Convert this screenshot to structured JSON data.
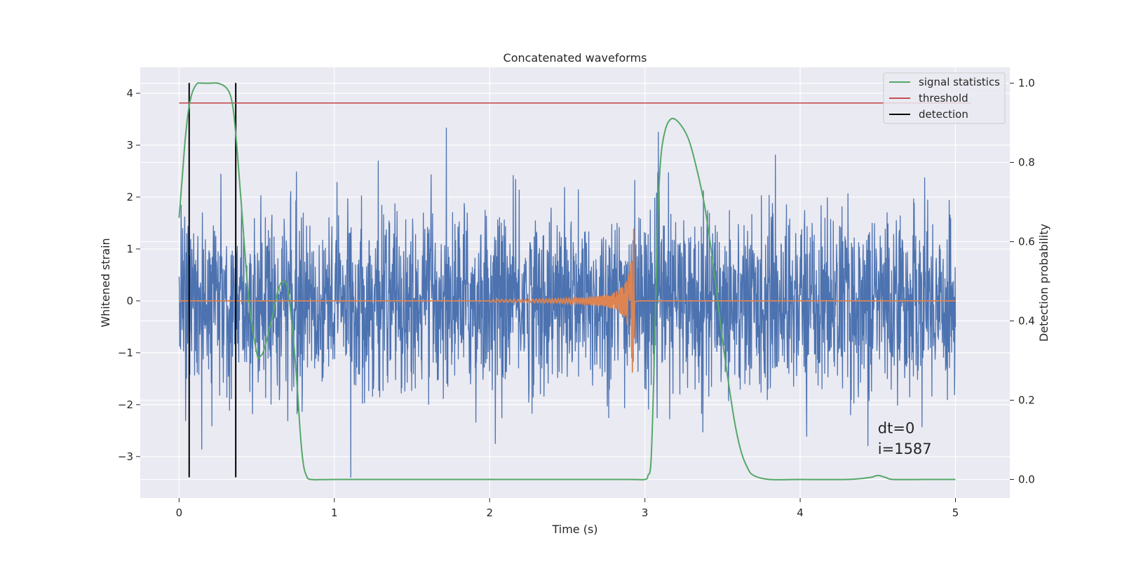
{
  "chart_data": {
    "type": "line",
    "title": "Concatenated waveforms",
    "xlabel": "Time (s)",
    "ylabel": "Whitened strain",
    "y2label": "Detection probability",
    "xlim": [
      -0.25,
      5.35
    ],
    "ylim": [
      -3.8,
      4.5
    ],
    "y2lim": [
      -0.047,
      1.04
    ],
    "xticks": [
      0,
      1,
      2,
      3,
      4,
      5
    ],
    "xtick_labels": [
      "0",
      "1",
      "2",
      "3",
      "4",
      "5"
    ],
    "yticks": [
      -3,
      -2,
      -1,
      0,
      1,
      2,
      3,
      4
    ],
    "ytick_labels": [
      "−3",
      "−2",
      "−1",
      "0",
      "1",
      "2",
      "3",
      "4"
    ],
    "y2ticks": [
      0,
      0.2,
      0.4,
      0.6,
      0.8,
      1.0
    ],
    "y2tick_labels": [
      "0.0",
      "0.2",
      "0.4",
      "0.6",
      "0.8",
      "1.0"
    ],
    "grid": true,
    "legend_position": "top-right",
    "noise": {
      "axis": "left",
      "color": "#4c72b0",
      "x_range": [
        0,
        5
      ],
      "y_range": [
        -3.4,
        4.2
      ]
    },
    "series": [
      {
        "name": "signal statistics",
        "axis": "right",
        "color": "#55a868",
        "x": [
          0,
          0.02,
          0.04,
          0.06,
          0.08,
          0.1,
          0.12,
          0.15,
          0.2,
          0.25,
          0.3,
          0.33,
          0.35,
          0.37,
          0.4,
          0.45,
          0.5,
          0.52,
          0.55,
          0.6,
          0.64,
          0.67,
          0.7,
          0.73,
          0.76,
          0.78,
          0.8,
          0.82,
          0.85,
          1.0,
          1.5,
          2.0,
          2.5,
          2.9,
          3.0,
          3.02,
          3.04,
          3.06,
          3.08,
          3.1,
          3.13,
          3.17,
          3.22,
          3.28,
          3.33,
          3.38,
          3.42,
          3.46,
          3.5,
          3.54,
          3.58,
          3.62,
          3.66,
          3.7,
          3.8,
          4.0,
          4.3,
          4.45,
          4.5,
          4.55,
          4.6,
          4.8,
          5.0
        ],
        "y": [
          0.66,
          0.76,
          0.86,
          0.93,
          0.97,
          0.99,
          1.0,
          1.0,
          1.0,
          1.0,
          0.99,
          0.97,
          0.93,
          0.85,
          0.7,
          0.45,
          0.32,
          0.31,
          0.33,
          0.41,
          0.48,
          0.5,
          0.48,
          0.38,
          0.24,
          0.12,
          0.04,
          0.01,
          0.0,
          0.0,
          0.0,
          0.0,
          0.0,
          0.0,
          0.0,
          0.01,
          0.05,
          0.3,
          0.62,
          0.8,
          0.88,
          0.91,
          0.9,
          0.86,
          0.79,
          0.7,
          0.6,
          0.48,
          0.35,
          0.24,
          0.14,
          0.07,
          0.03,
          0.01,
          0.0,
          0.0,
          0.0,
          0.005,
          0.01,
          0.005,
          0.0,
          0.0,
          0.0
        ]
      },
      {
        "name": "threshold",
        "axis": "right",
        "color": "#c44e52",
        "x": [
          0,
          5.1
        ],
        "y": [
          0.95,
          0.95
        ]
      },
      {
        "name": "detection",
        "axis": "left",
        "color": "#000000",
        "x_positions": [
          0.065,
          0.365
        ],
        "y_span": [
          -3.4,
          4.2
        ]
      },
      {
        "axis": "left",
        "color": "#dd8452",
        "x_range": [
          0,
          5
        ],
        "chirp_start": 2.0,
        "chirp_peak": 2.93,
        "chirp_end": 2.97,
        "peak_amplitude": 1.5
      }
    ],
    "annotations": [
      {
        "text": "dt=0",
        "x": 4.5,
        "y": -2.55
      },
      {
        "text": "i=1587",
        "x": 4.5,
        "y": -2.95
      }
    ]
  }
}
